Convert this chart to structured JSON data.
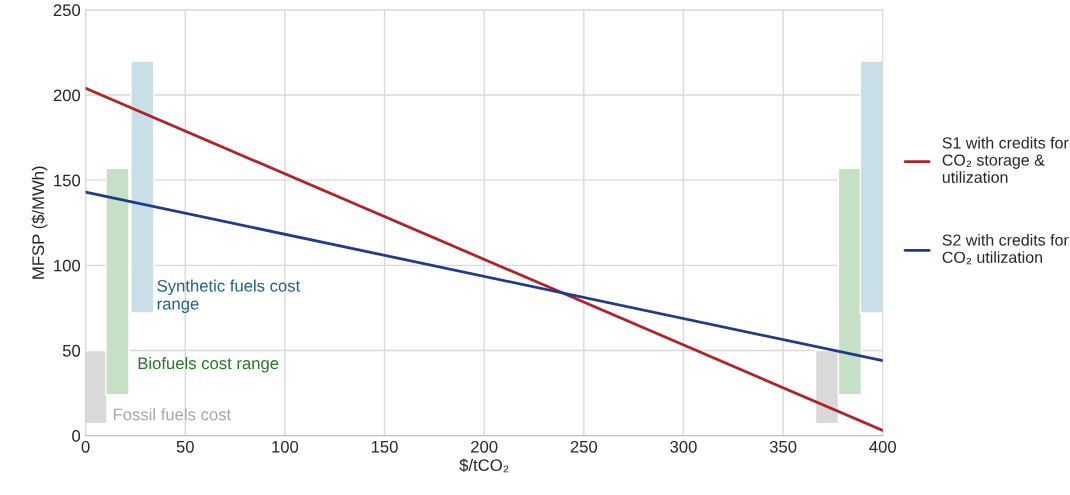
{
  "chart_data": {
    "type": "line",
    "xlabel": "$/tCO₂",
    "ylabel": "MFSP ($/MWh)",
    "xlim": [
      0,
      400
    ],
    "ylim": [
      0,
      250
    ],
    "xticks": [
      0,
      50,
      100,
      150,
      200,
      250,
      300,
      350,
      400
    ],
    "yticks": [
      0,
      50,
      100,
      150,
      200,
      250
    ],
    "grid": true,
    "legend": "right",
    "series": [
      {
        "type": "bar",
        "color": "#d9d9d9",
        "x": [
          5,
          372
        ],
        "base": [
          7,
          7
        ],
        "values": [
          43,
          43
        ]
      },
      {
        "type": "bar",
        "color": "#c6e0c6",
        "x": [
          16,
          383.5
        ],
        "base": [
          24,
          24
        ],
        "values": [
          133,
          133
        ]
      },
      {
        "type": "bar",
        "color": "#c9dfe8",
        "x": [
          28.5,
          394.5
        ],
        "base": [
          72,
          72
        ],
        "values": [
          148,
          148
        ]
      },
      {
        "name": "S1 with credits for\nCO₂ storage &\nutilization",
        "color": "#b52025",
        "x": [
          0,
          400
        ],
        "values": [
          204,
          3
        ]
      },
      {
        "name": "S2 with credits for\nCO₂ utilization",
        "color": "#1f3b8c",
        "x": [
          0,
          400
        ],
        "values": [
          143,
          44
        ]
      }
    ],
    "annotations": [
      "Fossil fuels cost",
      "Biofuels cost range",
      "Synthetic fuels cost\nrange"
    ]
  }
}
